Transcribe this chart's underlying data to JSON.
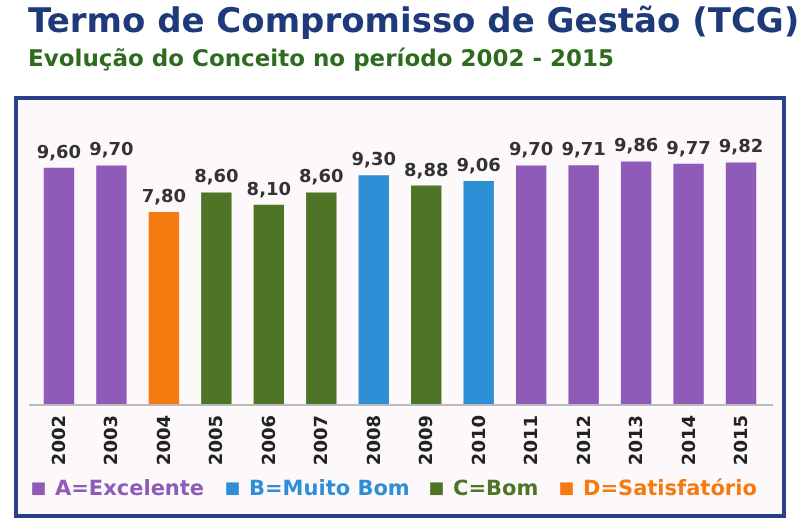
{
  "chart_data": {
    "type": "bar",
    "title": "Termo de Compromisso de Gestão (TCG)",
    "subtitle": "Evolução do Conceito no período 2002 - 2015",
    "categories": [
      "2002",
      "2003",
      "2004",
      "2005",
      "2006",
      "2007",
      "2008",
      "2009",
      "2010",
      "2011",
      "2012",
      "2013",
      "2014",
      "2015"
    ],
    "legend": "bottom",
    "series": [
      {
        "name": "A=Excelente",
        "color": "#8e5cb8",
        "values": [
          9.6,
          9.7,
          null,
          null,
          null,
          null,
          null,
          null,
          null,
          9.7,
          9.71,
          9.86,
          9.77,
          9.82
        ],
        "value_labels": [
          "9,60",
          "9,70",
          null,
          null,
          null,
          null,
          null,
          null,
          null,
          "9,70",
          "9,71",
          "9,86",
          "9,77",
          "9,82"
        ]
      },
      {
        "name": "B=Muito Bom",
        "color": "#2f8fd6",
        "values": [
          null,
          null,
          null,
          null,
          null,
          null,
          9.3,
          null,
          9.06,
          null,
          null,
          null,
          null,
          null
        ],
        "value_labels": [
          null,
          null,
          null,
          null,
          null,
          null,
          "9,30",
          null,
          "9,06",
          null,
          null,
          null,
          null,
          null
        ]
      },
      {
        "name": "C=Bom",
        "color": "#4e7525",
        "values": [
          null,
          null,
          null,
          8.6,
          8.1,
          8.6,
          null,
          8.88,
          null,
          null,
          null,
          null,
          null,
          null
        ],
        "value_labels": [
          null,
          null,
          null,
          "8,60",
          "8,10",
          "8,60",
          null,
          "8,88",
          null,
          null,
          null,
          null,
          null,
          null
        ]
      },
      {
        "name": "D=Satisfatório",
        "color": "#f57a10",
        "values": [
          null,
          null,
          7.8,
          null,
          null,
          null,
          null,
          null,
          null,
          null,
          null,
          null,
          null,
          null
        ],
        "value_labels": [
          null,
          null,
          "7,80",
          null,
          null,
          null,
          null,
          null,
          null,
          null,
          null,
          null,
          null,
          null
        ]
      }
    ]
  }
}
